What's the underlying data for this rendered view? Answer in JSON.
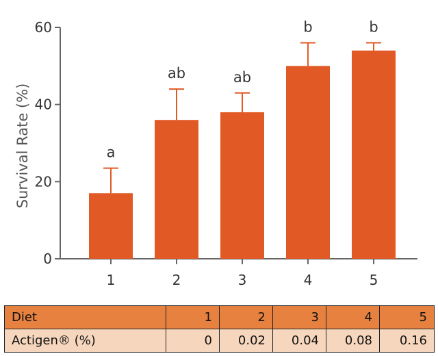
{
  "chart_data": {
    "type": "bar",
    "categories": [
      "1",
      "2",
      "3",
      "4",
      "5"
    ],
    "values": [
      17,
      36,
      38,
      50,
      54
    ],
    "errors": [
      6.5,
      8,
      5,
      6,
      2
    ],
    "significance": [
      "a",
      "ab",
      "ab",
      "b",
      "b"
    ],
    "ylabel": "Survival Rate (%)",
    "xlabel": "",
    "ylim": [
      0,
      60
    ],
    "yticks": [
      "0",
      "20",
      "40",
      "60"
    ],
    "grid": false,
    "bar_color": "#e15a25"
  },
  "table": {
    "header_label": "Diet",
    "diets": [
      "1",
      "2",
      "3",
      "4",
      "5"
    ],
    "row_label": "Actigen® (%)",
    "levels": [
      "0",
      "0.02",
      "0.04",
      "0.08",
      "0.16"
    ],
    "header_color": "#e6813f",
    "row_color": "#f6d7bd"
  }
}
